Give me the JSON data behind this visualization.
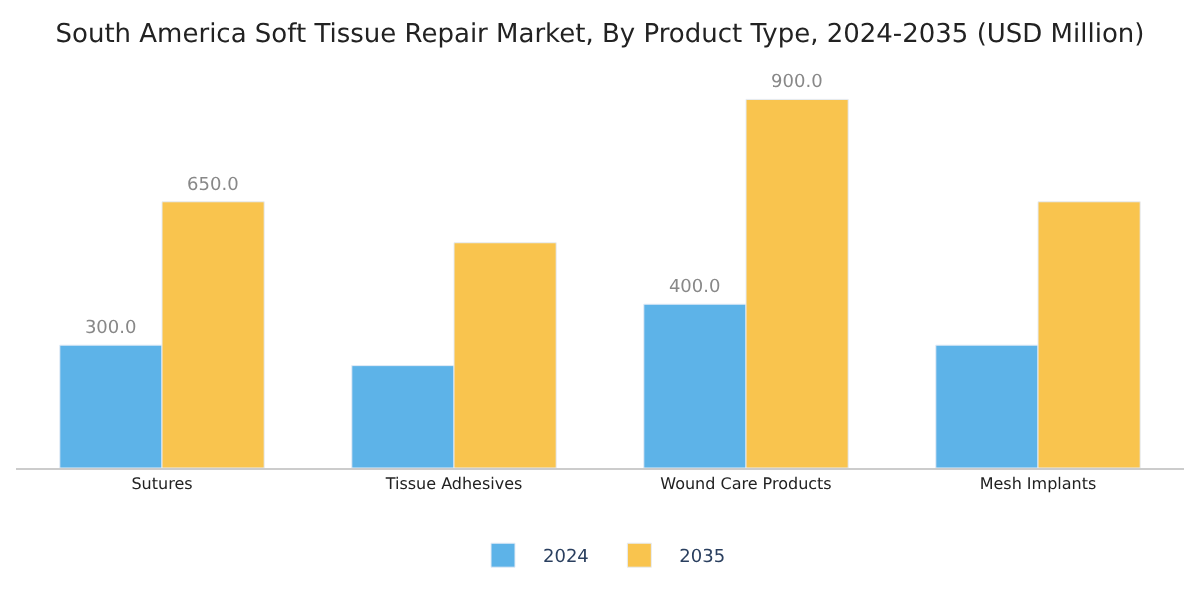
{
  "chart_data": {
    "type": "bar",
    "title": "South America Soft Tissue Repair Market, By Product Type, 2024-2035 (USD Million)",
    "categories": [
      "Sutures",
      "Tissue Adhesives",
      "Wound Care Products",
      "Mesh Implants"
    ],
    "series": [
      {
        "name": "2024",
        "color": "#5db3e8",
        "values": [
          300,
          250,
          400,
          300
        ],
        "value_labels": [
          "300.0",
          null,
          "400.0",
          null
        ]
      },
      {
        "name": "2035",
        "color": "#f9c44e",
        "values": [
          650,
          550,
          900,
          650
        ],
        "value_labels": [
          "650.0",
          null,
          "900.0",
          null
        ]
      }
    ],
    "legend": "bottom",
    "tick_labels": "x"
  }
}
